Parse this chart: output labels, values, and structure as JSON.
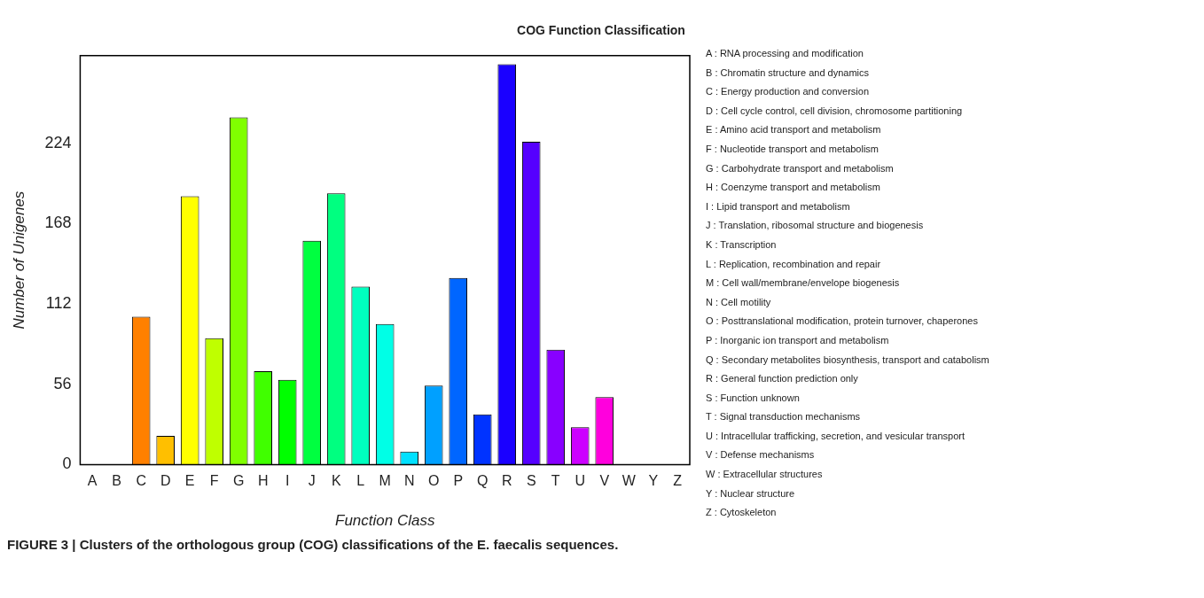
{
  "chart_data": {
    "type": "bar",
    "title": "COG Function Classification",
    "xlabel": "Function Class",
    "ylabel": "Number of Unigenes",
    "categories": [
      "A",
      "B",
      "C",
      "D",
      "E",
      "F",
      "G",
      "H",
      "I",
      "J",
      "K",
      "L",
      "M",
      "N",
      "O",
      "P",
      "Q",
      "R",
      "S",
      "T",
      "U",
      "V",
      "W",
      "Y",
      "Z"
    ],
    "values": [
      0,
      0,
      103,
      20,
      187,
      88,
      242,
      65,
      59,
      156,
      189,
      124,
      98,
      9,
      55,
      130,
      35,
      279,
      225,
      80,
      26,
      47,
      0,
      0,
      0
    ],
    "colors": [
      "#ff0000",
      "#ff4000",
      "#ff8000",
      "#ffbf00",
      "#ffff00",
      "#bfff00",
      "#80ff00",
      "#40ff00",
      "#00ff00",
      "#00ff40",
      "#00ff80",
      "#00ffbf",
      "#00ffe6",
      "#00e0ff",
      "#00a0ff",
      "#0066ff",
      "#0033ff",
      "#1a00ff",
      "#5500ff",
      "#8800ff",
      "#cc00ff",
      "#ff00dd",
      "#ff00aa",
      "#ff0066",
      "#ff0033"
    ],
    "ylim": [
      0,
      285
    ],
    "yticks": [
      0,
      56,
      112,
      168,
      224
    ],
    "grid": false,
    "legend": false,
    "annotations": [
      "A :  RNA processing and modification",
      "B :  Chromatin structure and dynamics",
      "C :  Energy production and conversion",
      "D :  Cell cycle control, cell division, chromosome partitioning",
      "E :  Amino acid transport and metabolism",
      "F :  Nucleotide transport and metabolism",
      "G :  Carbohydrate transport and metabolism",
      "H :  Coenzyme transport and metabolism",
      "I :  Lipid transport and metabolism",
      "J :  Translation, ribosomal structure and biogenesis",
      "K :  Transcription",
      "L :  Replication, recombination and repair",
      "M :  Cell wall/membrane/envelope biogenesis",
      "N :  Cell motility",
      "O :  Posttranslational modification, protein turnover, chaperones",
      "P :  Inorganic ion transport and metabolism",
      "Q :  Secondary metabolites biosynthesis, transport and catabolism",
      "R :  General function prediction only",
      "S :  Function unknown",
      "T :  Signal transduction mechanisms",
      "U :  Intracellular trafficking, secretion, and vesicular transport",
      "V :  Defense mechanisms",
      "W :  Extracellular structures",
      "Y :  Nuclear structure",
      "Z :  Cytoskeleton",
      "FIGURE 3 | Clusters of the orthologous group (COG) classifications of the E. faecalis sequences."
    ]
  }
}
